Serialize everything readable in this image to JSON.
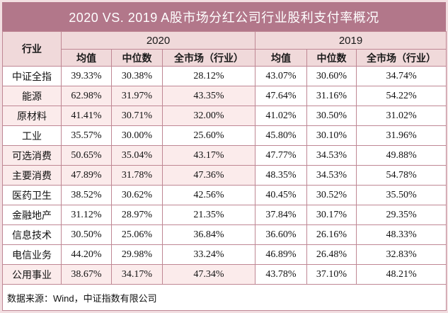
{
  "title": "2020 VS. 2019 A股市场分红公司行业股利支付率概况",
  "header": {
    "industry": "行业",
    "year_2020": "2020",
    "year_2019": "2019",
    "sub": [
      "均值",
      "中位数",
      "全市场（行业）"
    ]
  },
  "rows": [
    {
      "industry": "中证全指",
      "highlight": false,
      "values": [
        "39.33%",
        "30.38%",
        "28.12%",
        "43.07%",
        "30.60%",
        "34.74%"
      ]
    },
    {
      "industry": "能源",
      "highlight": true,
      "values": [
        "62.98%",
        "31.97%",
        "43.35%",
        "47.64%",
        "31.16%",
        "54.22%"
      ]
    },
    {
      "industry": "原材料",
      "highlight": true,
      "values": [
        "41.41%",
        "30.71%",
        "32.00%",
        "41.02%",
        "30.50%",
        "31.02%"
      ]
    },
    {
      "industry": "工业",
      "highlight": false,
      "values": [
        "35.57%",
        "30.00%",
        "25.60%",
        "45.80%",
        "30.10%",
        "31.96%"
      ]
    },
    {
      "industry": "可选消费",
      "highlight": true,
      "values": [
        "50.65%",
        "35.04%",
        "43.17%",
        "47.77%",
        "34.53%",
        "49.88%"
      ]
    },
    {
      "industry": "主要消费",
      "highlight": true,
      "values": [
        "47.89%",
        "31.78%",
        "47.36%",
        "48.35%",
        "34.53%",
        "54.78%"
      ]
    },
    {
      "industry": "医药卫生",
      "highlight": false,
      "values": [
        "38.52%",
        "30.62%",
        "42.56%",
        "40.45%",
        "30.52%",
        "35.50%"
      ]
    },
    {
      "industry": "金融地产",
      "highlight": false,
      "values": [
        "31.12%",
        "28.97%",
        "21.35%",
        "37.84%",
        "30.17%",
        "29.35%"
      ]
    },
    {
      "industry": "信息技术",
      "highlight": false,
      "values": [
        "30.50%",
        "25.06%",
        "36.84%",
        "36.60%",
        "26.16%",
        "48.33%"
      ]
    },
    {
      "industry": "电信业务",
      "highlight": false,
      "values": [
        "44.20%",
        "29.98%",
        "33.24%",
        "46.89%",
        "26.48%",
        "32.83%"
      ]
    },
    {
      "industry": "公用事业",
      "highlight": true,
      "values": [
        "38.67%",
        "34.17%",
        "47.34%",
        "43.78%",
        "37.10%",
        "48.21%"
      ]
    }
  ],
  "footer": "数据来源：Wind，中证指数有限公司",
  "colors": {
    "title_bg": "#b2778a",
    "title_text": "#ffffff",
    "header_bg": "#f0d9da",
    "highlight_bg": "#fbebeb",
    "grid_border": "#bf8794",
    "page_bg": "#f2dee1",
    "body_text": "#111111"
  },
  "chart_data": {
    "type": "table",
    "title": "2020 VS. 2019 A股市场分红公司行业股利支付率概况",
    "column_groups": [
      "2020",
      "2019"
    ],
    "columns": [
      "行业",
      "2020 均值",
      "2020 中位数",
      "2020 全市场（行业）",
      "2019 均值",
      "2019 中位数",
      "2019 全市场（行业）"
    ],
    "unit": "%",
    "rows": [
      [
        "中证全指",
        39.33,
        30.38,
        28.12,
        43.07,
        30.6,
        34.74
      ],
      [
        "能源",
        62.98,
        31.97,
        43.35,
        47.64,
        31.16,
        54.22
      ],
      [
        "原材料",
        41.41,
        30.71,
        32.0,
        41.02,
        30.5,
        31.02
      ],
      [
        "工业",
        35.57,
        30.0,
        25.6,
        45.8,
        30.1,
        31.96
      ],
      [
        "可选消费",
        50.65,
        35.04,
        43.17,
        47.77,
        34.53,
        49.88
      ],
      [
        "主要消费",
        47.89,
        31.78,
        47.36,
        48.35,
        34.53,
        54.78
      ],
      [
        "医药卫生",
        38.52,
        30.62,
        42.56,
        40.45,
        30.52,
        35.5
      ],
      [
        "金融地产",
        31.12,
        28.97,
        21.35,
        37.84,
        30.17,
        29.35
      ],
      [
        "信息技术",
        30.5,
        25.06,
        36.84,
        36.6,
        26.16,
        48.33
      ],
      [
        "电信业务",
        44.2,
        29.98,
        33.24,
        46.89,
        26.48,
        32.83
      ],
      [
        "公用事业",
        38.67,
        34.17,
        47.34,
        43.78,
        37.1,
        48.21
      ]
    ],
    "highlighted_rows": [
      "能源",
      "原材料",
      "可选消费",
      "主要消费",
      "公用事业"
    ],
    "source": "数据来源：Wind，中证指数有限公司"
  }
}
